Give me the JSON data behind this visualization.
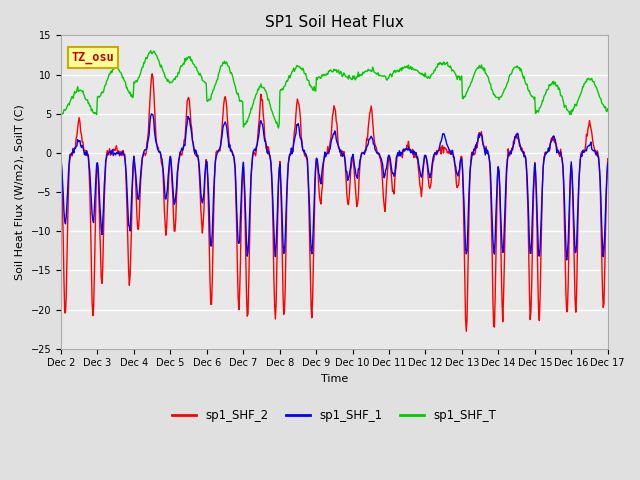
{
  "title": "SP1 Soil Heat Flux",
  "xlabel": "Time",
  "ylabel": "Soil Heat Flux (W/m2), SoilT (C)",
  "ylim": [
    -25,
    15
  ],
  "xlim": [
    0,
    15
  ],
  "x_tick_labels": [
    "Dec 2",
    "Dec 3",
    "Dec 4",
    "Dec 5",
    "Dec 6",
    "Dec 7",
    "Dec 8",
    "Dec 9",
    "Dec 10",
    "Dec 11",
    "Dec 12",
    "Dec 13",
    "Dec 14",
    "Dec 15",
    "Dec 16",
    "Dec 17"
  ],
  "color_shf2": "#FF0000",
  "color_shf1": "#0000FF",
  "color_shfT": "#00CC00",
  "bg_color": "#E8E8E8",
  "fig_bg_color": "#E0E0E0",
  "annotation_text": "TZ_osu",
  "annotation_color": "#CC0000",
  "annotation_bg": "#FFFF99",
  "annotation_border": "#CCAA00",
  "legend_labels": [
    "sp1_SHF_2",
    "sp1_SHF_1",
    "sp1_SHF_T"
  ],
  "yticks": [
    -25,
    -20,
    -15,
    -10,
    -5,
    0,
    5,
    10,
    15
  ],
  "title_fontsize": 11,
  "label_fontsize": 8,
  "tick_fontsize": 7
}
